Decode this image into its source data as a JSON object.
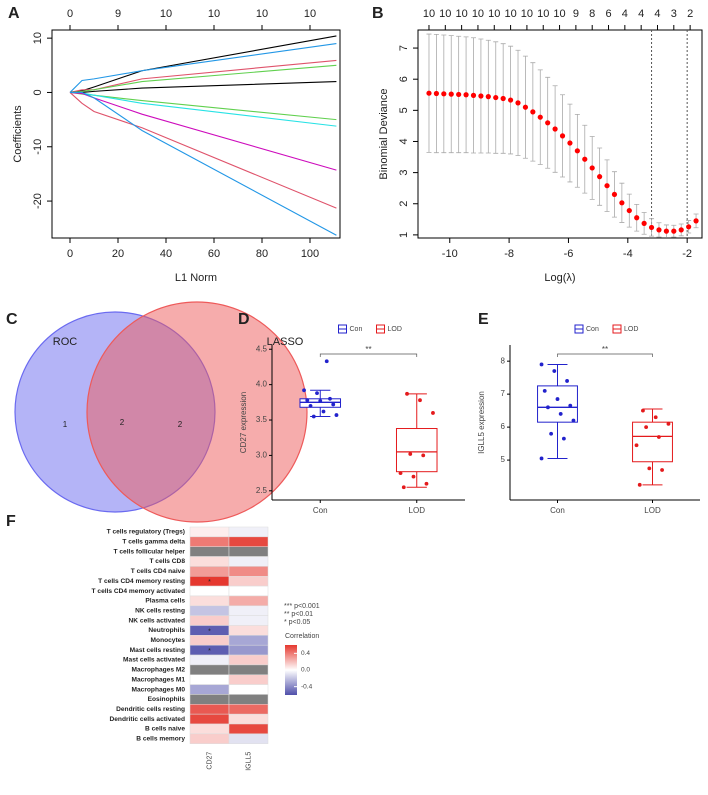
{
  "chart_data": [
    {
      "type": "line",
      "panel": "A",
      "xlabel": "L1 Norm",
      "ylabel": "Coefficients",
      "xlim": [
        -7.5,
        112.5
      ],
      "ylim": [
        -26.8,
        11.5
      ],
      "xticks": [
        0,
        20,
        40,
        60,
        80,
        100
      ],
      "yticks": [
        -20,
        -10,
        0,
        10
      ],
      "top_ticks": [
        0,
        {
          "value": 20,
          "label": "9"
        },
        {
          "value": 40,
          "label": "10"
        },
        {
          "value": 60,
          "label": "10"
        },
        {
          "value": 80,
          "label": "10"
        },
        {
          "value": 100,
          "label": "10"
        }
      ],
      "x": [
        0,
        5,
        10,
        30,
        111
      ],
      "series": [
        {
          "color": "#000000",
          "values": [
            0,
            0.3,
            1,
            4,
            10.4
          ]
        },
        {
          "color": "#2297E6",
          "values": [
            0,
            2.2,
            2.5,
            4,
            9
          ]
        },
        {
          "color": "#DF536B",
          "values": [
            0,
            0.5,
            0.5,
            2.5,
            5.9
          ]
        },
        {
          "color": "#61D04F",
          "values": [
            0,
            0.2,
            0.5,
            2,
            5
          ]
        },
        {
          "color": "#000000",
          "values": [
            0,
            0,
            0.2,
            0.8,
            2
          ]
        },
        {
          "color": "#61D04F",
          "values": [
            0,
            -0.3,
            -0.5,
            -1.5,
            -5
          ]
        },
        {
          "color": "#28E2E5",
          "values": [
            0,
            -0.1,
            -0.5,
            -2,
            -6.2
          ]
        },
        {
          "color": "#CD0BBC",
          "values": [
            0,
            -0.2,
            -1,
            -4,
            -14.3
          ]
        },
        {
          "color": "#DF536B",
          "values": [
            0,
            -2,
            -3.5,
            -6.5,
            -21.3
          ]
        },
        {
          "color": "#2297E6",
          "values": [
            0,
            0,
            -1,
            -7,
            -26.3
          ]
        }
      ]
    },
    {
      "type": "errorbar",
      "panel": "B",
      "xlabel": "Log(λ)",
      "ylabel": "Binomial Deviance",
      "xlim": [
        -11.07,
        -1.5
      ],
      "ylim": [
        0.9,
        7.58
      ],
      "xticks": [
        -10,
        -8,
        -6,
        -4,
        -2
      ],
      "yticks": [
        1,
        2,
        3,
        4,
        5,
        6,
        7
      ],
      "top_ticks": [
        {
          "value": -10.7,
          "label": "10"
        },
        {
          "value": -10.15,
          "label": "10"
        },
        {
          "value": -9.6,
          "label": "10"
        },
        {
          "value": -9.05,
          "label": "10"
        },
        {
          "value": -8.5,
          "label": "10"
        },
        {
          "value": -7.95,
          "label": "10"
        },
        {
          "value": -7.4,
          "label": "10"
        },
        {
          "value": -6.85,
          "label": "10"
        },
        {
          "value": -6.3,
          "label": "10"
        },
        {
          "value": -5.75,
          "label": "9"
        },
        {
          "value": -5.2,
          "label": "8"
        },
        {
          "value": -4.65,
          "label": "6"
        },
        {
          "value": -4.1,
          "label": "4"
        },
        {
          "value": -3.55,
          "label": "4"
        },
        {
          "value": -3.0,
          "label": "4"
        },
        {
          "value": -2.45,
          "label": "3"
        },
        {
          "value": -1.9,
          "label": "2"
        }
      ],
      "x": [
        -10.7,
        -10.45,
        -10.2,
        -9.95,
        -9.7,
        -9.45,
        -9.2,
        -8.95,
        -8.7,
        -8.45,
        -8.2,
        -7.95,
        -7.7,
        -7.45,
        -7.2,
        -6.95,
        -6.7,
        -6.45,
        -6.2,
        -5.95,
        -5.7,
        -5.45,
        -5.2,
        -4.95,
        -4.7,
        -4.45,
        -4.2,
        -3.95,
        -3.7,
        -3.45,
        -3.2,
        -2.95,
        -2.7,
        -2.45,
        -2.2,
        -1.95,
        -1.7
      ],
      "values": [
        5.55,
        5.54,
        5.53,
        5.52,
        5.51,
        5.5,
        5.48,
        5.46,
        5.44,
        5.41,
        5.38,
        5.33,
        5.24,
        5.1,
        4.95,
        4.78,
        4.6,
        4.4,
        4.18,
        3.95,
        3.7,
        3.43,
        3.15,
        2.87,
        2.58,
        2.3,
        2.03,
        1.78,
        1.55,
        1.37,
        1.24,
        1.16,
        1.12,
        1.12,
        1.16,
        1.26,
        1.45
      ],
      "errors": [
        1.9,
        1.9,
        1.89,
        1.88,
        1.87,
        1.86,
        1.85,
        1.83,
        1.81,
        1.79,
        1.76,
        1.73,
        1.69,
        1.64,
        1.58,
        1.52,
        1.46,
        1.39,
        1.32,
        1.25,
        1.17,
        1.09,
        1.01,
        0.92,
        0.83,
        0.73,
        0.63,
        0.53,
        0.43,
        0.35,
        0.28,
        0.23,
        0.2,
        0.19,
        0.19,
        0.2,
        0.22
      ],
      "color": "#FF0000",
      "error_color": "#AAAAAA",
      "vlines": [
        -3.2,
        -2.0
      ]
    },
    {
      "type": "venn",
      "panel": "C",
      "sets": [
        {
          "name": "ROC",
          "color": "#6A6AF0",
          "count": 1
        },
        {
          "name": "LASSO",
          "color": "#EE5A5A",
          "count": 2
        }
      ],
      "intersection": 2
    },
    {
      "type": "box",
      "panel": "D",
      "ylabel": "CD27 expression",
      "categories": [
        "Con",
        "LOD"
      ],
      "colors": [
        "#2222CC",
        "#E41A1C"
      ],
      "ylim": [
        2.37,
        4.56
      ],
      "yticks": [
        2.5,
        {
          "value": 3,
          "label": "3.0"
        },
        3.5,
        {
          "value": 4,
          "label": "4.0"
        },
        4.5
      ],
      "stats": [
        {
          "min": 3.55,
          "q1": 3.68,
          "median": 3.75,
          "q3": 3.8,
          "max": 3.92
        },
        {
          "min": 2.55,
          "q1": 2.77,
          "median": 3.05,
          "q3": 3.38,
          "max": 3.87
        }
      ],
      "points": [
        [
          3.92,
          3.88,
          3.8,
          3.78,
          3.77,
          3.72,
          3.7,
          3.62,
          3.57,
          3.55,
          4.33
        ],
        [
          3.87,
          3.78,
          3.6,
          3.02,
          3.0,
          2.75,
          2.7,
          2.6,
          2.55
        ]
      ],
      "significance": "**"
    },
    {
      "type": "box",
      "panel": "E",
      "ylabel": "IGLL5 expression",
      "categories": [
        "Con",
        "LOD"
      ],
      "colors": [
        "#2222CC",
        "#E41A1C"
      ],
      "ylim": [
        3.79,
        8.49
      ],
      "yticks": [
        5,
        6,
        7,
        8
      ],
      "stats": [
        {
          "min": 5.05,
          "q1": 6.15,
          "median": 6.6,
          "q3": 7.25,
          "max": 7.9
        },
        {
          "min": 4.25,
          "q1": 4.95,
          "median": 5.72,
          "q3": 6.15,
          "max": 6.55
        }
      ],
      "points": [
        [
          7.9,
          7.7,
          7.4,
          7.1,
          6.85,
          6.65,
          6.6,
          6.4,
          6.2,
          5.8,
          5.65,
          5.05
        ],
        [
          6.5,
          6.3,
          6.1,
          6.0,
          5.7,
          5.45,
          4.75,
          4.7,
          4.25
        ]
      ],
      "significance": "**"
    },
    {
      "type": "heatmap",
      "panel": "F",
      "rows": [
        "T cells regulatory (Tregs)",
        "T cells gamma delta",
        "T cells follicular helper",
        "T cells CD8",
        "T cells CD4 naive",
        "T cells CD4 memory resting",
        "T cells CD4 memory activated",
        "Plasma cells",
        "NK cells resting",
        "NK cells activated",
        "Neutrophils",
        "Monocytes",
        "Mast cells resting",
        "Mast cells activated",
        "Macrophages M2",
        "Macrophages M1",
        "Macrophages M0",
        "Eosinophils",
        "Dendritic cells resting",
        "Dendritic cells activated",
        "B cells naive",
        "B cells memory"
      ],
      "columns": [
        "CD27",
        "IGLL5"
      ],
      "values": [
        [
          0.05,
          -0.05
        ],
        [
          0.4,
          0.55
        ],
        [
          null,
          null
        ],
        [
          0.1,
          -0.05
        ],
        [
          0.3,
          0.35
        ],
        [
          0.6,
          0.15
        ],
        [
          0.0,
          0.0
        ],
        [
          0.1,
          0.25
        ],
        [
          -0.2,
          -0.05
        ],
        [
          0.15,
          -0.05
        ],
        [
          -0.55,
          0.1
        ],
        [
          0.15,
          -0.3
        ],
        [
          -0.55,
          -0.35
        ],
        [
          -0.05,
          0.15
        ],
        [
          null,
          null
        ],
        [
          0.0,
          0.15
        ],
        [
          -0.3,
          0.0
        ],
        [
          null,
          null
        ],
        [
          0.5,
          0.45
        ],
        [
          0.55,
          0.1
        ],
        [
          0.1,
          0.55
        ],
        [
          0.15,
          -0.1
        ]
      ],
      "cell_labels": [
        [
          null,
          null
        ],
        [
          null,
          null
        ],
        [
          null,
          null
        ],
        [
          null,
          null
        ],
        [
          null,
          null
        ],
        [
          "*",
          null
        ],
        [
          null,
          null
        ],
        [
          null,
          null
        ],
        [
          null,
          null
        ],
        [
          null,
          null
        ],
        [
          "*",
          null
        ],
        [
          null,
          null
        ],
        [
          "*",
          null
        ],
        [
          null,
          null
        ],
        [
          null,
          null
        ],
        [
          null,
          null
        ],
        [
          null,
          null
        ],
        [
          null,
          null
        ],
        [
          null,
          null
        ],
        [
          null,
          null
        ],
        [
          null,
          null
        ],
        [
          null,
          null
        ]
      ],
      "significance_legend": [
        "*** p<0.001",
        "** p<0.01",
        "* p<0.05"
      ],
      "colorbar_title": "Correlation",
      "clim": [
        -0.6,
        0.6
      ],
      "cticks": [
        0.4,
        {
          "value": 0,
          "label": "0.0"
        },
        -0.4
      ],
      "colors": {
        "low": "#4F4FAA",
        "mid": "#FFFFFF",
        "high": "#E5382F"
      },
      "na_color": "#808080"
    }
  ]
}
